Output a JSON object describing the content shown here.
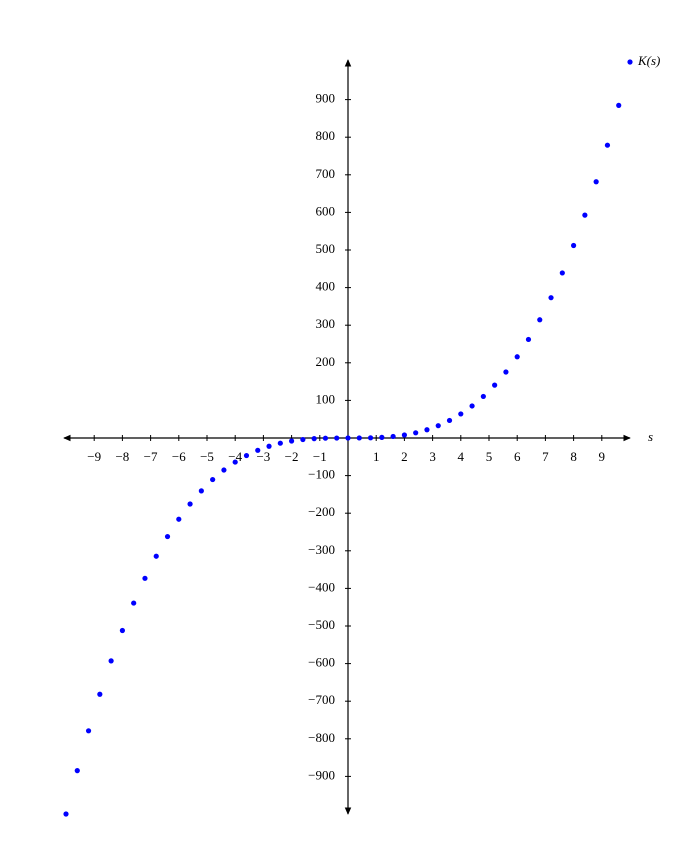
{
  "chart_data": {
    "type": "scatter",
    "x_label": "s",
    "y_label": "K(s)",
    "color": "#0000ff",
    "x": [
      -10,
      -9.6,
      -9.2,
      -8.8,
      -8.4,
      -8,
      -7.6,
      -7.2,
      -6.8,
      -6.4,
      -6,
      -5.6,
      -5.2,
      -4.8,
      -4.4,
      -4,
      -3.6,
      -3.2,
      -2.8,
      -2.4,
      -2,
      -1.6,
      -1.2,
      -0.8,
      -0.4,
      0,
      0.4,
      0.8,
      1.2,
      1.6,
      2,
      2.4,
      2.8,
      3.2,
      3.6,
      4,
      4.4,
      4.8,
      5.2,
      5.6,
      6,
      6.4,
      6.8,
      7.2,
      7.6,
      8,
      8.4,
      8.8,
      9.2,
      9.6,
      10
    ],
    "values": [
      -1000,
      -884.7,
      -778.7,
      -681.5,
      -592.7,
      -512,
      -439,
      -373.2,
      -314.4,
      -262.1,
      -216,
      -175.6,
      -140.6,
      -110.6,
      -85.2,
      -64,
      -46.7,
      -32.8,
      -22,
      -13.8,
      -8,
      -4.1,
      -1.7,
      -0.5,
      -0.1,
      0,
      0.1,
      0.5,
      1.7,
      4.1,
      8,
      13.8,
      22,
      32.8,
      46.7,
      64,
      85.2,
      110.6,
      140.6,
      175.6,
      216,
      262.1,
      314.4,
      373.2,
      439,
      512,
      592.7,
      681.5,
      778.7,
      884.7,
      1000
    ],
    "xlim": [
      -10,
      10
    ],
    "ylim": [
      -1000,
      1000
    ],
    "xticks": [
      {
        "value": -9,
        "label": "−9"
      },
      {
        "value": -8,
        "label": "−8"
      },
      {
        "value": -7,
        "label": "−7"
      },
      {
        "value": -6,
        "label": "−6"
      },
      {
        "value": -5,
        "label": "−5"
      },
      {
        "value": -4,
        "label": "−4"
      },
      {
        "value": -3,
        "label": "−3"
      },
      {
        "value": -2,
        "label": "−2"
      },
      {
        "value": -1,
        "label": "−1"
      },
      1,
      2,
      3,
      4,
      5,
      6,
      7,
      8,
      9
    ],
    "yticks": [
      {
        "value": -900,
        "label": "−900"
      },
      {
        "value": -800,
        "label": "−800"
      },
      {
        "value": -700,
        "label": "−700"
      },
      {
        "value": -600,
        "label": "−600"
      },
      {
        "value": -500,
        "label": "−500"
      },
      {
        "value": -400,
        "label": "−400"
      },
      {
        "value": -300,
        "label": "−300"
      },
      {
        "value": -200,
        "label": "−200"
      },
      {
        "value": -100,
        "label": "−100"
      },
      100,
      200,
      300,
      400,
      500,
      600,
      700,
      800,
      900
    ]
  }
}
